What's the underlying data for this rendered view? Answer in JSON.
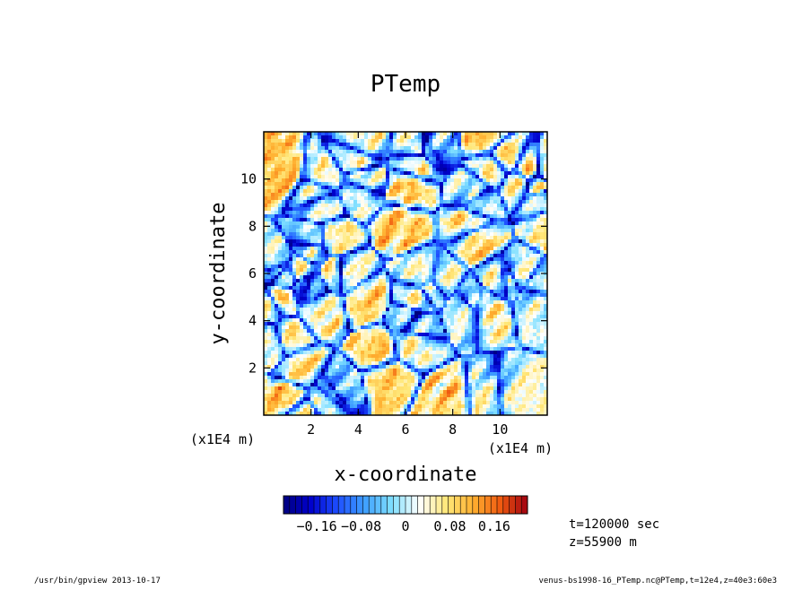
{
  "chart_data": {
    "type": "heatmap",
    "title": "PTemp",
    "xlabel": "x-coordinate",
    "ylabel": "y-coordinate",
    "x_unit": "(x1E4 m)",
    "y_unit": "(x1E4 m)",
    "xlim": [
      0,
      12
    ],
    "ylim": [
      0,
      12
    ],
    "x_ticks": [
      {
        "value": 2,
        "label": "2"
      },
      {
        "value": 4,
        "label": "4"
      },
      {
        "value": 6,
        "label": "6"
      },
      {
        "value": 8,
        "label": "8"
      },
      {
        "value": 10,
        "label": "10"
      }
    ],
    "y_ticks": [
      {
        "value": 2,
        "label": "2"
      },
      {
        "value": 4,
        "label": "4"
      },
      {
        "value": 6,
        "label": "6"
      },
      {
        "value": 8,
        "label": "8"
      },
      {
        "value": 10,
        "label": "10"
      }
    ],
    "field_description": "turbulent potential temperature perturbation field, cellular pattern with warm (orange/red) blobs bounded by cool (blue) filaments",
    "colorbar": {
      "range": [
        -0.22,
        0.22
      ],
      "n_levels": 40,
      "tick_labels": [
        {
          "value": -0.16,
          "label": "−0.16"
        },
        {
          "value": -0.08,
          "label": "−0.08"
        },
        {
          "value": 0,
          "label": "0"
        },
        {
          "value": 0.08,
          "label": "0.08"
        },
        {
          "value": 0.16,
          "label": "0.16"
        }
      ],
      "colors": [
        "#00007f",
        "#0000cc",
        "#1e4fff",
        "#3fa0ff",
        "#7fdfff",
        "#ffffff",
        "#ffe87a",
        "#ffb030",
        "#f05a10",
        "#a00010"
      ]
    },
    "annotations": [
      "t=120000 sec",
      "z=55900 m"
    ]
  },
  "footer": {
    "left": "/usr/bin/gpview   2013-10-17",
    "right": "venus-bs1998-16_PTemp.nc@PTemp,t=12e4,z=40e3:60e3"
  }
}
